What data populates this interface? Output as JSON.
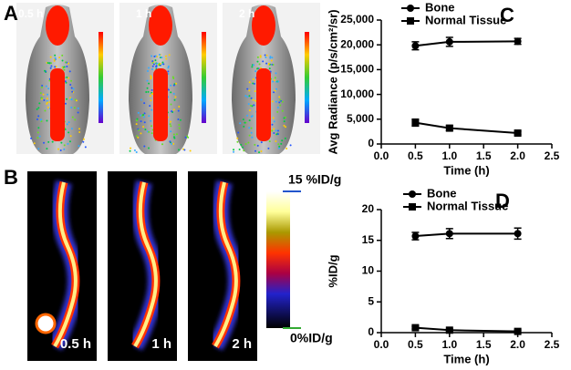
{
  "figure": {
    "panel_a": {
      "label": "A",
      "times": [
        "0.5 h",
        "1 h",
        "2 h"
      ]
    },
    "panel_b": {
      "label": "B",
      "times": [
        "0.5 h",
        "1 h",
        "2 h"
      ],
      "colorbar_max": "15 %ID/g",
      "colorbar_min": "0%ID/g"
    }
  },
  "chart_data": [
    {
      "type": "line",
      "panel_label": "C",
      "y_label": "Avg Radiance (p/s/cm²/sr)",
      "x_label": "Time (h)",
      "x": [
        0.5,
        1.0,
        2.0
      ],
      "series": [
        {
          "name": "Bone",
          "color": "#000000",
          "marker": "circle",
          "values": [
            19800,
            20600,
            20700
          ],
          "errors": [
            800,
            900,
            600
          ]
        },
        {
          "name": "Normal Tissue",
          "color": "#000000",
          "marker": "square",
          "values": [
            4300,
            3200,
            2200
          ],
          "errors": [
            700,
            500,
            300
          ]
        }
      ],
      "xlim": [
        0,
        2.5
      ],
      "xticks": [
        {
          "value": 0,
          "label": "0.0"
        },
        0.5,
        {
          "value": 1,
          "label": "1.0"
        },
        1.5,
        {
          "value": 2,
          "label": "2.0"
        },
        2.5
      ],
      "ylim": [
        0,
        25000
      ],
      "yticks": [
        0,
        {
          "value": 5000,
          "label": "5,000"
        },
        {
          "value": 10000,
          "label": "10,000"
        },
        {
          "value": 15000,
          "label": "15,000"
        },
        {
          "value": 20000,
          "label": "20,000"
        },
        {
          "value": 25000,
          "label": "25,000"
        }
      ]
    },
    {
      "type": "line",
      "panel_label": "D",
      "y_label": "%ID/g",
      "x_label": "Time (h)",
      "x": [
        0.5,
        1.0,
        2.0
      ],
      "series": [
        {
          "name": "Bone",
          "color": "#000000",
          "marker": "circle",
          "values": [
            15.7,
            16.1,
            16.1
          ],
          "errors": [
            0.6,
            0.8,
            0.9
          ]
        },
        {
          "name": "Normal Tissue",
          "color": "#000000",
          "marker": "square",
          "values": [
            0.8,
            0.4,
            0.2
          ],
          "errors": [
            0.2,
            0.2,
            0.2
          ]
        }
      ],
      "xlim": [
        0,
        2.5
      ],
      "xticks": [
        {
          "value": 0,
          "label": "0.0"
        },
        0.5,
        {
          "value": 1,
          "label": "1.0"
        },
        1.5,
        {
          "value": 2,
          "label": "2.0"
        },
        2.5
      ],
      "ylim": [
        0,
        20
      ],
      "yticks": [
        0,
        5,
        10,
        15,
        20
      ]
    }
  ]
}
